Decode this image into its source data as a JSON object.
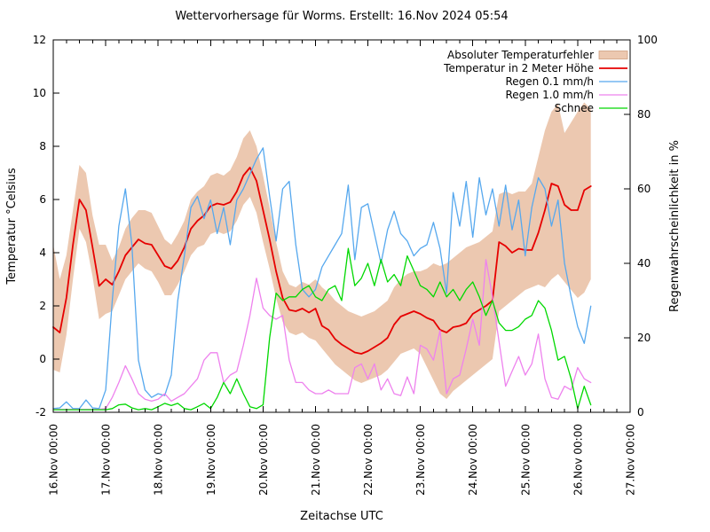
{
  "title": "Wettervorhersage für Worms. Erstellt: 16.Nov 2024 05:54",
  "chart_data": {
    "type": "line",
    "title": "Wettervorhersage für Worms. Erstellt: 16.Nov 2024 05:54",
    "xlabel": "Zeitachse UTC",
    "ylabel": "Temperatur °Celsius",
    "y2label": "Regenwahrscheinlichkeit in %",
    "x_axis": {
      "tick_labels": [
        "16.Nov 00:00",
        "17.Nov 00:00",
        "18.Nov 00:00",
        "19.Nov 00:00",
        "20.Nov 00:00",
        "21.Nov 00:00",
        "22.Nov 00:00",
        "23.Nov 00:00",
        "24.Nov 00:00",
        "25.Nov 00:00",
        "26.Nov 00:00",
        "27.Nov 00:00"
      ],
      "tick_hours": [
        0,
        24,
        48,
        72,
        96,
        120,
        144,
        168,
        192,
        216,
        240,
        264
      ],
      "minor_tick_step_hours": 6,
      "range_hours": [
        0,
        264
      ]
    },
    "y_axis": {
      "ticks": [
        -2,
        0,
        2,
        4,
        6,
        8,
        10,
        12
      ],
      "range": [
        -2,
        12
      ]
    },
    "y2_axis": {
      "ticks": [
        0,
        20,
        40,
        60,
        80,
        100
      ],
      "range": [
        0,
        100
      ]
    },
    "grid": false,
    "legend_position": "top-right-inside",
    "hours": [
      0,
      3,
      6,
      9,
      12,
      15,
      18,
      21,
      24,
      27,
      30,
      33,
      36,
      39,
      42,
      45,
      48,
      51,
      54,
      57,
      60,
      63,
      66,
      69,
      72,
      75,
      78,
      81,
      84,
      87,
      90,
      93,
      96,
      99,
      102,
      105,
      108,
      111,
      114,
      117,
      120,
      123,
      126,
      129,
      132,
      135,
      138,
      141,
      144,
      147,
      150,
      153,
      156,
      159,
      162,
      165,
      168,
      171,
      174,
      177,
      180,
      183,
      186,
      189,
      192,
      195,
      198,
      201,
      204,
      207,
      210,
      213,
      216,
      219,
      222,
      225,
      228,
      231,
      234,
      237,
      240,
      243,
      246
    ],
    "series": [
      {
        "name": "Absoluter Temperaturfehler",
        "kind": "band",
        "axis": "y",
        "color": "#ecc8b0",
        "lo": [
          -0.4,
          -0.5,
          0.9,
          3.0,
          4.9,
          4.4,
          3.1,
          1.5,
          1.7,
          1.8,
          2.4,
          3.0,
          3.3,
          3.6,
          3.4,
          3.3,
          2.9,
          2.4,
          2.4,
          2.8,
          3.3,
          3.9,
          4.2,
          4.3,
          4.7,
          4.8,
          4.7,
          4.8,
          5.2,
          5.8,
          6.1,
          5.5,
          4.4,
          3.4,
          2.3,
          1.4,
          1.0,
          0.9,
          1.0,
          0.8,
          0.7,
          0.4,
          0.1,
          -0.2,
          -0.4,
          -0.6,
          -0.8,
          -0.9,
          -0.8,
          -0.7,
          -0.6,
          -0.4,
          -0.1,
          0.2,
          0.3,
          0.4,
          0.2,
          -0.3,
          -0.8,
          -1.3,
          -1.5,
          -1.2,
          -1.0,
          -0.8,
          -0.6,
          -0.4,
          -0.2,
          0.0,
          1.8,
          2.0,
          2.2,
          2.4,
          2.6,
          2.7,
          2.8,
          2.7,
          3.0,
          3.2,
          2.9,
          2.6,
          2.3,
          2.5,
          3.0
        ],
        "hi": [
          4.3,
          3.0,
          3.9,
          5.6,
          7.3,
          7.0,
          5.4,
          4.3,
          4.3,
          3.7,
          4.2,
          4.9,
          5.3,
          5.6,
          5.6,
          5.5,
          5.0,
          4.5,
          4.3,
          4.7,
          5.2,
          6.0,
          6.3,
          6.5,
          6.9,
          7.0,
          6.9,
          7.1,
          7.6,
          8.3,
          8.6,
          8.0,
          6.9,
          5.7,
          4.4,
          3.3,
          2.8,
          2.7,
          2.9,
          2.8,
          3.0,
          2.7,
          2.5,
          2.2,
          2.0,
          1.8,
          1.7,
          1.6,
          1.7,
          1.8,
          2.0,
          2.2,
          2.7,
          3.0,
          3.2,
          3.3,
          3.3,
          3.4,
          3.6,
          3.5,
          3.6,
          3.8,
          4.0,
          4.2,
          4.3,
          4.4,
          4.6,
          4.8,
          6.2,
          6.3,
          6.2,
          6.3,
          6.3,
          6.6,
          7.6,
          8.6,
          9.3,
          9.6,
          8.5,
          8.9,
          9.3,
          9.65,
          9.4
        ]
      },
      {
        "name": "Temperatur in 2 Meter Höhe",
        "kind": "line",
        "axis": "y",
        "color": "#e60000",
        "width": 1.8,
        "values": [
          1.2,
          1.0,
          2.3,
          4.3,
          6.0,
          5.6,
          4.2,
          2.75,
          3.0,
          2.8,
          3.3,
          3.9,
          4.2,
          4.5,
          4.35,
          4.3,
          3.9,
          3.5,
          3.4,
          3.7,
          4.2,
          4.9,
          5.2,
          5.4,
          5.75,
          5.85,
          5.8,
          5.9,
          6.3,
          6.9,
          7.2,
          6.7,
          5.6,
          4.5,
          3.3,
          2.3,
          1.85,
          1.8,
          1.9,
          1.75,
          1.9,
          1.25,
          1.1,
          0.75,
          0.55,
          0.4,
          0.25,
          0.2,
          0.3,
          0.45,
          0.6,
          0.8,
          1.3,
          1.6,
          1.7,
          1.8,
          1.7,
          1.55,
          1.45,
          1.1,
          1.0,
          1.2,
          1.25,
          1.35,
          1.7,
          1.85,
          2.0,
          2.2,
          4.4,
          4.25,
          4.0,
          4.15,
          4.1,
          4.1,
          4.75,
          5.6,
          6.6,
          6.5,
          5.8,
          5.6,
          5.6,
          6.35,
          6.5
        ]
      },
      {
        "name": "Regen 0.1 mm/h",
        "kind": "line",
        "axis": "y2",
        "color": "#56a8ee",
        "width": 1.3,
        "values": [
          1,
          1.2,
          2.8,
          1,
          1,
          3.3,
          1.2,
          1,
          6,
          30,
          50,
          60,
          45,
          14,
          6,
          4,
          5,
          4.5,
          10,
          30,
          42,
          55,
          58,
          52,
          57,
          48,
          55,
          45,
          57,
          60,
          64,
          68,
          71,
          58,
          46,
          60,
          62,
          45,
          33,
          31,
          33,
          39,
          42,
          45,
          48,
          61,
          41,
          55,
          56,
          48,
          40,
          49,
          54,
          48,
          46,
          42,
          44,
          45,
          51,
          44,
          32,
          59,
          50,
          62,
          47,
          63,
          53,
          60,
          50,
          61,
          49,
          57,
          42,
          55,
          63,
          60,
          50,
          57,
          40,
          31,
          23,
          18.5,
          28.5
        ]
      },
      {
        "name": "Regen 1.0 mm/h",
        "kind": "line",
        "axis": "y2",
        "color": "#ee82ee",
        "width": 1.3,
        "values": [
          0.8,
          0.8,
          0.8,
          0.8,
          0.8,
          0.8,
          0.8,
          0.8,
          1,
          4,
          8,
          12.5,
          9,
          5,
          3.5,
          3,
          3.5,
          5,
          3,
          4,
          5,
          7,
          9,
          14,
          16,
          16,
          8,
          10,
          11,
          18,
          26,
          36,
          28,
          26,
          25,
          26,
          14,
          8,
          8,
          6,
          5,
          5,
          6,
          5,
          5,
          5,
          12,
          13,
          9,
          13,
          6,
          9,
          5,
          4.5,
          9.5,
          5,
          18,
          17,
          14,
          22,
          5,
          9,
          10,
          17,
          25,
          18,
          41,
          31,
          19,
          7,
          11,
          15,
          10,
          13,
          21,
          9,
          4,
          3.5,
          7,
          6,
          12,
          9,
          8
        ]
      },
      {
        "name": "Schnee",
        "kind": "line",
        "axis": "y2",
        "color": "#00d800",
        "width": 1.3,
        "values": [
          0.7,
          0.7,
          0.7,
          0.7,
          0.7,
          0.7,
          0.7,
          0.7,
          0.7,
          1,
          2,
          2.2,
          1.2,
          0.7,
          1,
          0.7,
          1.5,
          2.4,
          1.8,
          2.4,
          1,
          0.7,
          1.5,
          2.4,
          1,
          4,
          8,
          5,
          9,
          5,
          1.5,
          1,
          2,
          20,
          32,
          30,
          31,
          31,
          33,
          34,
          31,
          30,
          33,
          34,
          30,
          44,
          34,
          36,
          40,
          34,
          41,
          35,
          37,
          34,
          42,
          38,
          34,
          33,
          31,
          35,
          31,
          33,
          30,
          33,
          35,
          31,
          26,
          30,
          24,
          22,
          22,
          23,
          25,
          26,
          30,
          28,
          22,
          14,
          15,
          9,
          1,
          7,
          2
        ]
      }
    ]
  }
}
